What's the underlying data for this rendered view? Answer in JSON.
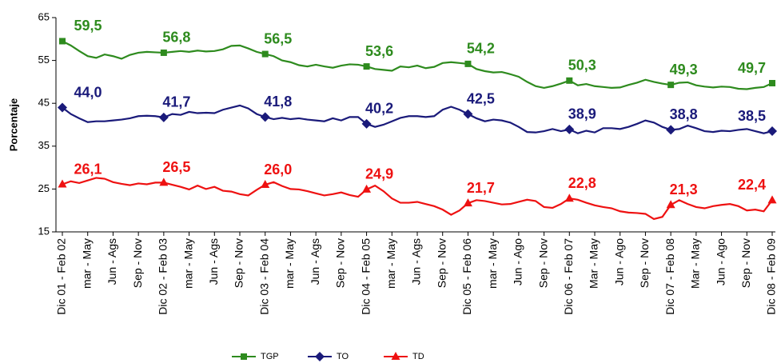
{
  "chart_data": {
    "type": "line",
    "y_label": "Porcentaje",
    "ylim": [
      15,
      65
    ],
    "yticks": [
      15,
      25,
      35,
      45,
      55,
      65
    ],
    "legend": "bottom",
    "categories": [
      "Dic 01 - Feb 02",
      null,
      null,
      "mar - May",
      null,
      null,
      "Jun - Ags",
      null,
      null,
      "Sep - Nov",
      null,
      null,
      "Dic 02 - Feb 03",
      null,
      null,
      "mar - May",
      null,
      null,
      "Jun - Ags",
      null,
      null,
      "Sep - Nov",
      null,
      null,
      "Dic 03 - Feb 04",
      null,
      null,
      "mar - May",
      null,
      null,
      "Jun - Ags",
      null,
      null,
      "Sep - Nov",
      null,
      null,
      "Dic 04 - Feb 05",
      null,
      null,
      "mar - May",
      null,
      null,
      "Jun - Ags",
      null,
      null,
      "Sep - Nov",
      null,
      null,
      "Dic 05 - Feb 06",
      null,
      null,
      "mar - May",
      null,
      null,
      "Jun - Ago",
      null,
      null,
      "Sep - Nov",
      null,
      null,
      "Dic 06 - Feb 07",
      null,
      null,
      "Mar - May",
      null,
      null,
      "Jun - Ago",
      null,
      null,
      "Sep - Nov",
      null,
      null,
      "Dic 07 - Feb 08",
      null,
      null,
      "Mar - May",
      null,
      null,
      "Jun - Ago",
      null,
      null,
      "Sep - Nov",
      null,
      null,
      "Dic 08 - Feb 09"
    ],
    "series": [
      {
        "name": "TGP",
        "color": "#2e8b1e",
        "marker": "square",
        "values": [
          59.5,
          58.5,
          57.2,
          56.0,
          55.6,
          56.4,
          56.0,
          55.4,
          56.3,
          56.8,
          57.0,
          56.9,
          56.8,
          57.0,
          57.2,
          57.0,
          57.3,
          57.1,
          57.2,
          57.6,
          58.4,
          58.5,
          57.8,
          57.0,
          56.5,
          56.0,
          55.0,
          54.6,
          53.9,
          53.6,
          54.0,
          53.6,
          53.3,
          53.8,
          54.1,
          54.0,
          53.6,
          53.0,
          52.8,
          52.6,
          53.6,
          53.4,
          53.8,
          53.2,
          53.5,
          54.4,
          54.6,
          54.4,
          54.2,
          53.0,
          52.5,
          52.2,
          52.3,
          51.8,
          51.2,
          50.0,
          49.0,
          48.6,
          49.0,
          49.6,
          50.3,
          49.2,
          49.5,
          49.0,
          48.8,
          48.6,
          48.7,
          49.3,
          49.8,
          50.5,
          50.0,
          49.6,
          49.3,
          49.8,
          49.9,
          49.2,
          48.9,
          48.7,
          48.9,
          48.8,
          48.4,
          48.3,
          48.6,
          48.8,
          49.7
        ],
        "value_labels": [
          "59,5",
          null,
          null,
          null,
          null,
          null,
          null,
          null,
          null,
          null,
          null,
          null,
          "56,8",
          null,
          null,
          null,
          null,
          null,
          null,
          null,
          null,
          null,
          null,
          null,
          "56,5",
          null,
          null,
          null,
          null,
          null,
          null,
          null,
          null,
          null,
          null,
          null,
          "53,6",
          null,
          null,
          null,
          null,
          null,
          null,
          null,
          null,
          null,
          null,
          null,
          "54,2",
          null,
          null,
          null,
          null,
          null,
          null,
          null,
          null,
          null,
          null,
          null,
          "50,3",
          null,
          null,
          null,
          null,
          null,
          null,
          null,
          null,
          null,
          null,
          null,
          "49,3",
          null,
          null,
          null,
          null,
          null,
          null,
          null,
          null,
          null,
          null,
          null,
          "49,7"
        ]
      },
      {
        "name": "TO",
        "color": "#1a1a7a",
        "marker": "diamond",
        "values": [
          44.0,
          42.5,
          41.5,
          40.6,
          40.8,
          40.8,
          41.0,
          41.2,
          41.5,
          42.0,
          42.1,
          42.0,
          41.7,
          42.5,
          42.3,
          43.0,
          42.7,
          42.8,
          42.7,
          43.5,
          44.0,
          44.5,
          43.8,
          42.5,
          41.8,
          41.3,
          41.6,
          41.3,
          41.5,
          41.2,
          41.0,
          40.8,
          41.5,
          41.0,
          41.8,
          41.8,
          40.2,
          39.5,
          40.0,
          40.8,
          41.6,
          42.0,
          42.0,
          41.8,
          42.0,
          43.5,
          44.2,
          43.5,
          42.5,
          41.5,
          40.8,
          41.2,
          41.0,
          40.5,
          39.5,
          38.3,
          38.2,
          38.5,
          39.0,
          38.5,
          38.9,
          38.0,
          38.6,
          38.2,
          39.2,
          39.2,
          39.0,
          39.5,
          40.2,
          41.0,
          40.5,
          39.5,
          38.8,
          39.0,
          39.8,
          39.2,
          38.5,
          38.3,
          38.6,
          38.5,
          38.8,
          39.0,
          38.5,
          38.0,
          38.5
        ],
        "value_labels": [
          "44,0",
          null,
          null,
          null,
          null,
          null,
          null,
          null,
          null,
          null,
          null,
          null,
          "41,7",
          null,
          null,
          null,
          null,
          null,
          null,
          null,
          null,
          null,
          null,
          null,
          "41,8",
          null,
          null,
          null,
          null,
          null,
          null,
          null,
          null,
          null,
          null,
          null,
          "40,2",
          null,
          null,
          null,
          null,
          null,
          null,
          null,
          null,
          null,
          null,
          null,
          "42,5",
          null,
          null,
          null,
          null,
          null,
          null,
          null,
          null,
          null,
          null,
          null,
          "38,9",
          null,
          null,
          null,
          null,
          null,
          null,
          null,
          null,
          null,
          null,
          null,
          "38,8",
          null,
          null,
          null,
          null,
          null,
          null,
          null,
          null,
          null,
          null,
          null,
          "38,5"
        ]
      },
      {
        "name": "TD",
        "color": "#ee1111",
        "marker": "triangle",
        "values": [
          26.1,
          26.8,
          26.4,
          27.0,
          27.6,
          27.4,
          26.6,
          26.2,
          25.9,
          26.3,
          26.1,
          26.5,
          26.5,
          26.0,
          25.5,
          24.9,
          25.8,
          25.0,
          25.5,
          24.6,
          24.4,
          23.8,
          23.5,
          24.8,
          26.0,
          26.6,
          25.7,
          25.0,
          24.9,
          24.5,
          24.0,
          23.5,
          23.8,
          24.2,
          23.6,
          23.2,
          24.9,
          25.8,
          24.5,
          22.8,
          21.8,
          21.8,
          22.0,
          21.5,
          21.0,
          20.2,
          19.0,
          20.0,
          21.7,
          22.4,
          22.2,
          21.8,
          21.4,
          21.5,
          22.0,
          22.5,
          22.2,
          20.8,
          20.6,
          21.5,
          22.8,
          22.5,
          21.8,
          21.2,
          20.8,
          20.5,
          19.8,
          19.5,
          19.4,
          19.2,
          18.0,
          18.5,
          21.3,
          22.4,
          21.5,
          20.8,
          20.5,
          21.0,
          21.3,
          21.5,
          21.0,
          20.0,
          20.2,
          19.8,
          22.4
        ],
        "value_labels": [
          "26,1",
          null,
          null,
          null,
          null,
          null,
          null,
          null,
          null,
          null,
          null,
          null,
          "26,5",
          null,
          null,
          null,
          null,
          null,
          null,
          null,
          null,
          null,
          null,
          null,
          "26,0",
          null,
          null,
          null,
          null,
          null,
          null,
          null,
          null,
          null,
          null,
          null,
          "24,9",
          null,
          null,
          null,
          null,
          null,
          null,
          null,
          null,
          null,
          null,
          null,
          "21,7",
          null,
          null,
          null,
          null,
          null,
          null,
          null,
          null,
          null,
          null,
          null,
          "22,8",
          null,
          null,
          null,
          null,
          null,
          null,
          null,
          null,
          null,
          null,
          null,
          "21,3",
          null,
          null,
          null,
          null,
          null,
          null,
          null,
          null,
          null,
          null,
          null,
          "22,4"
        ]
      }
    ]
  }
}
